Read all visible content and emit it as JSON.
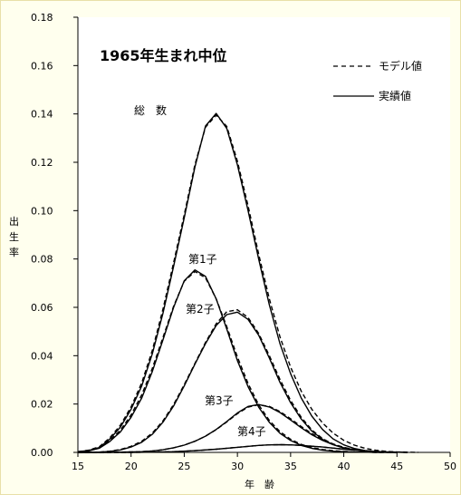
{
  "chart_data": {
    "type": "line",
    "title": "1965年生まれ中位",
    "xlabel": "年　齢",
    "ylabel": "出生率",
    "xlim": [
      15,
      50
    ],
    "ylim": [
      0,
      0.18
    ],
    "xticks": [
      15,
      20,
      25,
      30,
      35,
      40,
      45,
      50
    ],
    "xtick_labels": [
      "15",
      "20",
      "25",
      "30",
      "35",
      "40",
      "45",
      "50"
    ],
    "yticks": [
      0,
      0.02,
      0.04,
      0.06,
      0.08,
      0.1,
      0.12,
      0.14,
      0.16,
      0.18
    ],
    "ytick_labels": [
      "0.00",
      "0.02",
      "0.04",
      "0.06",
      "0.08",
      "0.10",
      "0.12",
      "0.14",
      "0.16",
      "0.18"
    ],
    "grid": false,
    "legend": {
      "position": "top-right",
      "entries": [
        {
          "label": "モデル値",
          "style": "dashed"
        },
        {
          "label": "実績値",
          "style": "solid"
        }
      ]
    },
    "series": [
      {
        "name": "総　数",
        "kind": "実績値",
        "x": [
          15,
          16,
          17,
          18,
          19,
          20,
          21,
          22,
          23,
          24,
          25,
          26,
          27,
          28,
          29,
          30,
          31,
          32,
          33,
          34,
          35,
          36,
          37,
          38,
          39,
          40,
          41,
          42,
          43,
          44,
          45,
          46
        ],
        "y": [
          0.0003,
          0.0008,
          0.002,
          0.0055,
          0.0105,
          0.0178,
          0.0275,
          0.0408,
          0.0575,
          0.077,
          0.097,
          0.118,
          0.135,
          0.1402,
          0.134,
          0.119,
          0.1,
          0.08,
          0.061,
          0.045,
          0.0325,
          0.0225,
          0.015,
          0.0095,
          0.0056,
          0.0031,
          0.0016,
          0.0008,
          0.0004,
          0.0002,
          0.0001,
          0
        ]
      },
      {
        "name": "総　数",
        "kind": "モデル値",
        "x": [
          15,
          16,
          17,
          18,
          19,
          20,
          21,
          22,
          23,
          24,
          25,
          26,
          27,
          28,
          29,
          30,
          31,
          32,
          33,
          34,
          35,
          36,
          37,
          38,
          39,
          40,
          41,
          42,
          43,
          44,
          45,
          46,
          47
        ],
        "y": [
          0.0003,
          0.0009,
          0.0023,
          0.006,
          0.0113,
          0.0188,
          0.0288,
          0.0422,
          0.0592,
          0.0785,
          0.0983,
          0.119,
          0.1345,
          0.1395,
          0.1348,
          0.1205,
          0.102,
          0.082,
          0.0635,
          0.0478,
          0.0352,
          0.0253,
          0.0178,
          0.0122,
          0.008,
          0.005,
          0.003,
          0.0017,
          0.0009,
          0.0004,
          0.0002,
          0.0001,
          0
        ]
      },
      {
        "name": "第1子",
        "kind": "実績値",
        "x": [
          15,
          16,
          17,
          18,
          19,
          20,
          21,
          22,
          23,
          24,
          25,
          26,
          27,
          28,
          29,
          30,
          31,
          32,
          33,
          34,
          35,
          36,
          37,
          38,
          39,
          40,
          41,
          42,
          43,
          44,
          45
        ],
        "y": [
          0.0002,
          0.0006,
          0.0017,
          0.0045,
          0.0085,
          0.0145,
          0.0225,
          0.0335,
          0.0465,
          0.06,
          0.071,
          0.0755,
          0.0728,
          0.0635,
          0.051,
          0.038,
          0.0272,
          0.0187,
          0.0124,
          0.0079,
          0.0049,
          0.0029,
          0.0017,
          0.0009,
          0.0005,
          0.0003,
          0.0001,
          0.0001,
          0,
          0,
          0
        ]
      },
      {
        "name": "第1子",
        "kind": "モデル値",
        "x": [
          15,
          16,
          17,
          18,
          19,
          20,
          21,
          22,
          23,
          24,
          25,
          26,
          27,
          28,
          29,
          30,
          31,
          32,
          33,
          34,
          35,
          36,
          37,
          38,
          39,
          40,
          41,
          42,
          43,
          44,
          45
        ],
        "y": [
          0.0002,
          0.0007,
          0.002,
          0.0049,
          0.0092,
          0.0155,
          0.0238,
          0.0348,
          0.0475,
          0.0605,
          0.0708,
          0.0748,
          0.0722,
          0.0635,
          0.052,
          0.0395,
          0.0285,
          0.0197,
          0.0132,
          0.0086,
          0.0054,
          0.0033,
          0.002,
          0.0012,
          0.0007,
          0.0004,
          0.0002,
          0.0001,
          0,
          0,
          0
        ]
      },
      {
        "name": "第2子",
        "kind": "実績値",
        "x": [
          15,
          16,
          17,
          18,
          19,
          20,
          21,
          22,
          23,
          24,
          25,
          26,
          27,
          28,
          29,
          30,
          31,
          32,
          33,
          34,
          35,
          36,
          37,
          38,
          39,
          40,
          41,
          42,
          43,
          44,
          45
        ],
        "y": [
          0,
          0,
          0.0001,
          0.0004,
          0.001,
          0.0022,
          0.0042,
          0.0075,
          0.0125,
          0.0192,
          0.0275,
          0.0365,
          0.045,
          0.0525,
          0.057,
          0.058,
          0.055,
          0.0485,
          0.039,
          0.029,
          0.0205,
          0.0138,
          0.0088,
          0.0054,
          0.0032,
          0.0018,
          0.001,
          0.0005,
          0.0002,
          0.0001,
          0
        ]
      },
      {
        "name": "第2子",
        "kind": "モデル値",
        "x": [
          15,
          16,
          17,
          18,
          19,
          20,
          21,
          22,
          23,
          24,
          25,
          26,
          27,
          28,
          29,
          30,
          31,
          32,
          33,
          34,
          35,
          36,
          37,
          38,
          39,
          40,
          41,
          42,
          43,
          44,
          45
        ],
        "y": [
          0,
          0,
          0.0001,
          0.0005,
          0.0012,
          0.0025,
          0.0046,
          0.008,
          0.013,
          0.0198,
          0.028,
          0.0368,
          0.0455,
          0.0532,
          0.0582,
          0.059,
          0.0558,
          0.0492,
          0.04,
          0.0302,
          0.0215,
          0.0145,
          0.0093,
          0.0057,
          0.0034,
          0.002,
          0.0011,
          0.0006,
          0.0003,
          0.0001,
          0
        ]
      },
      {
        "name": "第3子",
        "kind": "実績値",
        "x": [
          15,
          17,
          19,
          21,
          22,
          23,
          24,
          25,
          26,
          27,
          28,
          29,
          30,
          31,
          32,
          33,
          34,
          35,
          36,
          37,
          38,
          39,
          40,
          41,
          42,
          43,
          44,
          45
        ],
        "y": [
          0,
          0,
          0.0001,
          0.0003,
          0.0006,
          0.0011,
          0.0019,
          0.003,
          0.0046,
          0.0067,
          0.0095,
          0.0128,
          0.0163,
          0.019,
          0.0198,
          0.0188,
          0.0165,
          0.0134,
          0.0102,
          0.0073,
          0.005,
          0.0032,
          0.0019,
          0.0011,
          0.0006,
          0.0003,
          0.0001,
          0
        ]
      },
      {
        "name": "第3子",
        "kind": "モデル値",
        "x": [
          15,
          17,
          19,
          21,
          22,
          23,
          24,
          25,
          26,
          27,
          28,
          29,
          30,
          31,
          32,
          33,
          34,
          35,
          36,
          37,
          38,
          39,
          40,
          41,
          42,
          43,
          44,
          45
        ],
        "y": [
          0,
          0,
          0.0001,
          0.0003,
          0.0006,
          0.0011,
          0.0019,
          0.003,
          0.0046,
          0.0067,
          0.0094,
          0.0126,
          0.016,
          0.0187,
          0.0197,
          0.019,
          0.0169,
          0.0139,
          0.0107,
          0.0078,
          0.0054,
          0.0035,
          0.0021,
          0.0012,
          0.0007,
          0.0003,
          0.0001,
          0
        ]
      },
      {
        "name": "第4子",
        "kind": "実績値",
        "x": [
          15,
          20,
          22,
          24,
          26,
          28,
          30,
          32,
          33,
          34,
          35,
          36,
          38,
          40,
          42,
          44,
          46
        ],
        "y": [
          0,
          0,
          0.0001,
          0.0003,
          0.0007,
          0.0013,
          0.0021,
          0.0029,
          0.0031,
          0.0032,
          0.0031,
          0.0029,
          0.0022,
          0.0013,
          0.0006,
          0.0002,
          0
        ]
      },
      {
        "name": "第4子",
        "kind": "モデル値",
        "x": [
          15,
          20,
          22,
          24,
          26,
          28,
          30,
          32,
          33,
          34,
          35,
          36,
          38,
          40,
          42,
          44,
          46
        ],
        "y": [
          0,
          0,
          0.0001,
          0.0003,
          0.0007,
          0.0013,
          0.0021,
          0.0029,
          0.0031,
          0.0032,
          0.0031,
          0.0029,
          0.0022,
          0.0013,
          0.0006,
          0.0002,
          0
        ]
      }
    ]
  }
}
